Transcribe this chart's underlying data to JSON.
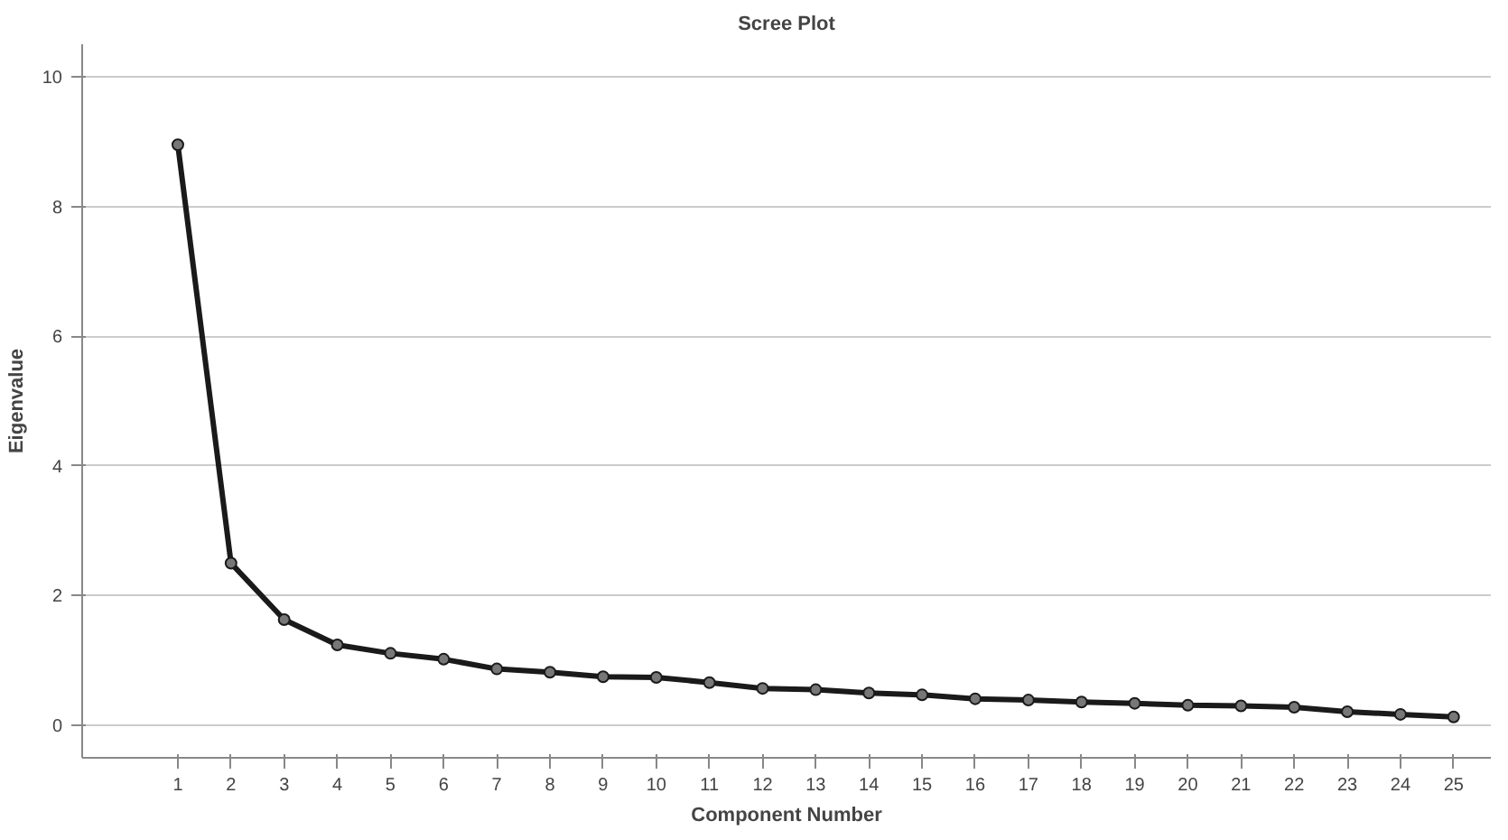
{
  "chart_data": {
    "type": "line",
    "title": "Scree Plot",
    "xlabel": "Component Number",
    "ylabel": "Eigenvalue",
    "x": [
      1,
      2,
      3,
      4,
      5,
      6,
      7,
      8,
      9,
      10,
      11,
      12,
      13,
      14,
      15,
      16,
      17,
      18,
      19,
      20,
      21,
      22,
      23,
      24,
      25
    ],
    "series": [
      {
        "color": "#1a1a1a",
        "values": [
          8.95,
          2.5,
          1.63,
          1.24,
          1.11,
          1.02,
          0.87,
          0.82,
          0.75,
          0.74,
          0.66,
          0.57,
          0.55,
          0.5,
          0.47,
          0.41,
          0.39,
          0.36,
          0.34,
          0.31,
          0.3,
          0.28,
          0.21,
          0.17,
          0.13
        ]
      }
    ],
    "xlim": [
      -0.8,
      25.7
    ],
    "xticks": [
      1,
      2,
      3,
      4,
      5,
      6,
      7,
      8,
      9,
      10,
      11,
      12,
      13,
      14,
      15,
      16,
      17,
      18,
      19,
      20,
      21,
      22,
      23,
      24,
      25
    ],
    "ylim": [
      -0.5,
      10.5
    ],
    "yticks": [
      0,
      2,
      4,
      6,
      8,
      10
    ],
    "grid": "y",
    "marker": "circle",
    "line_style": "solid"
  }
}
